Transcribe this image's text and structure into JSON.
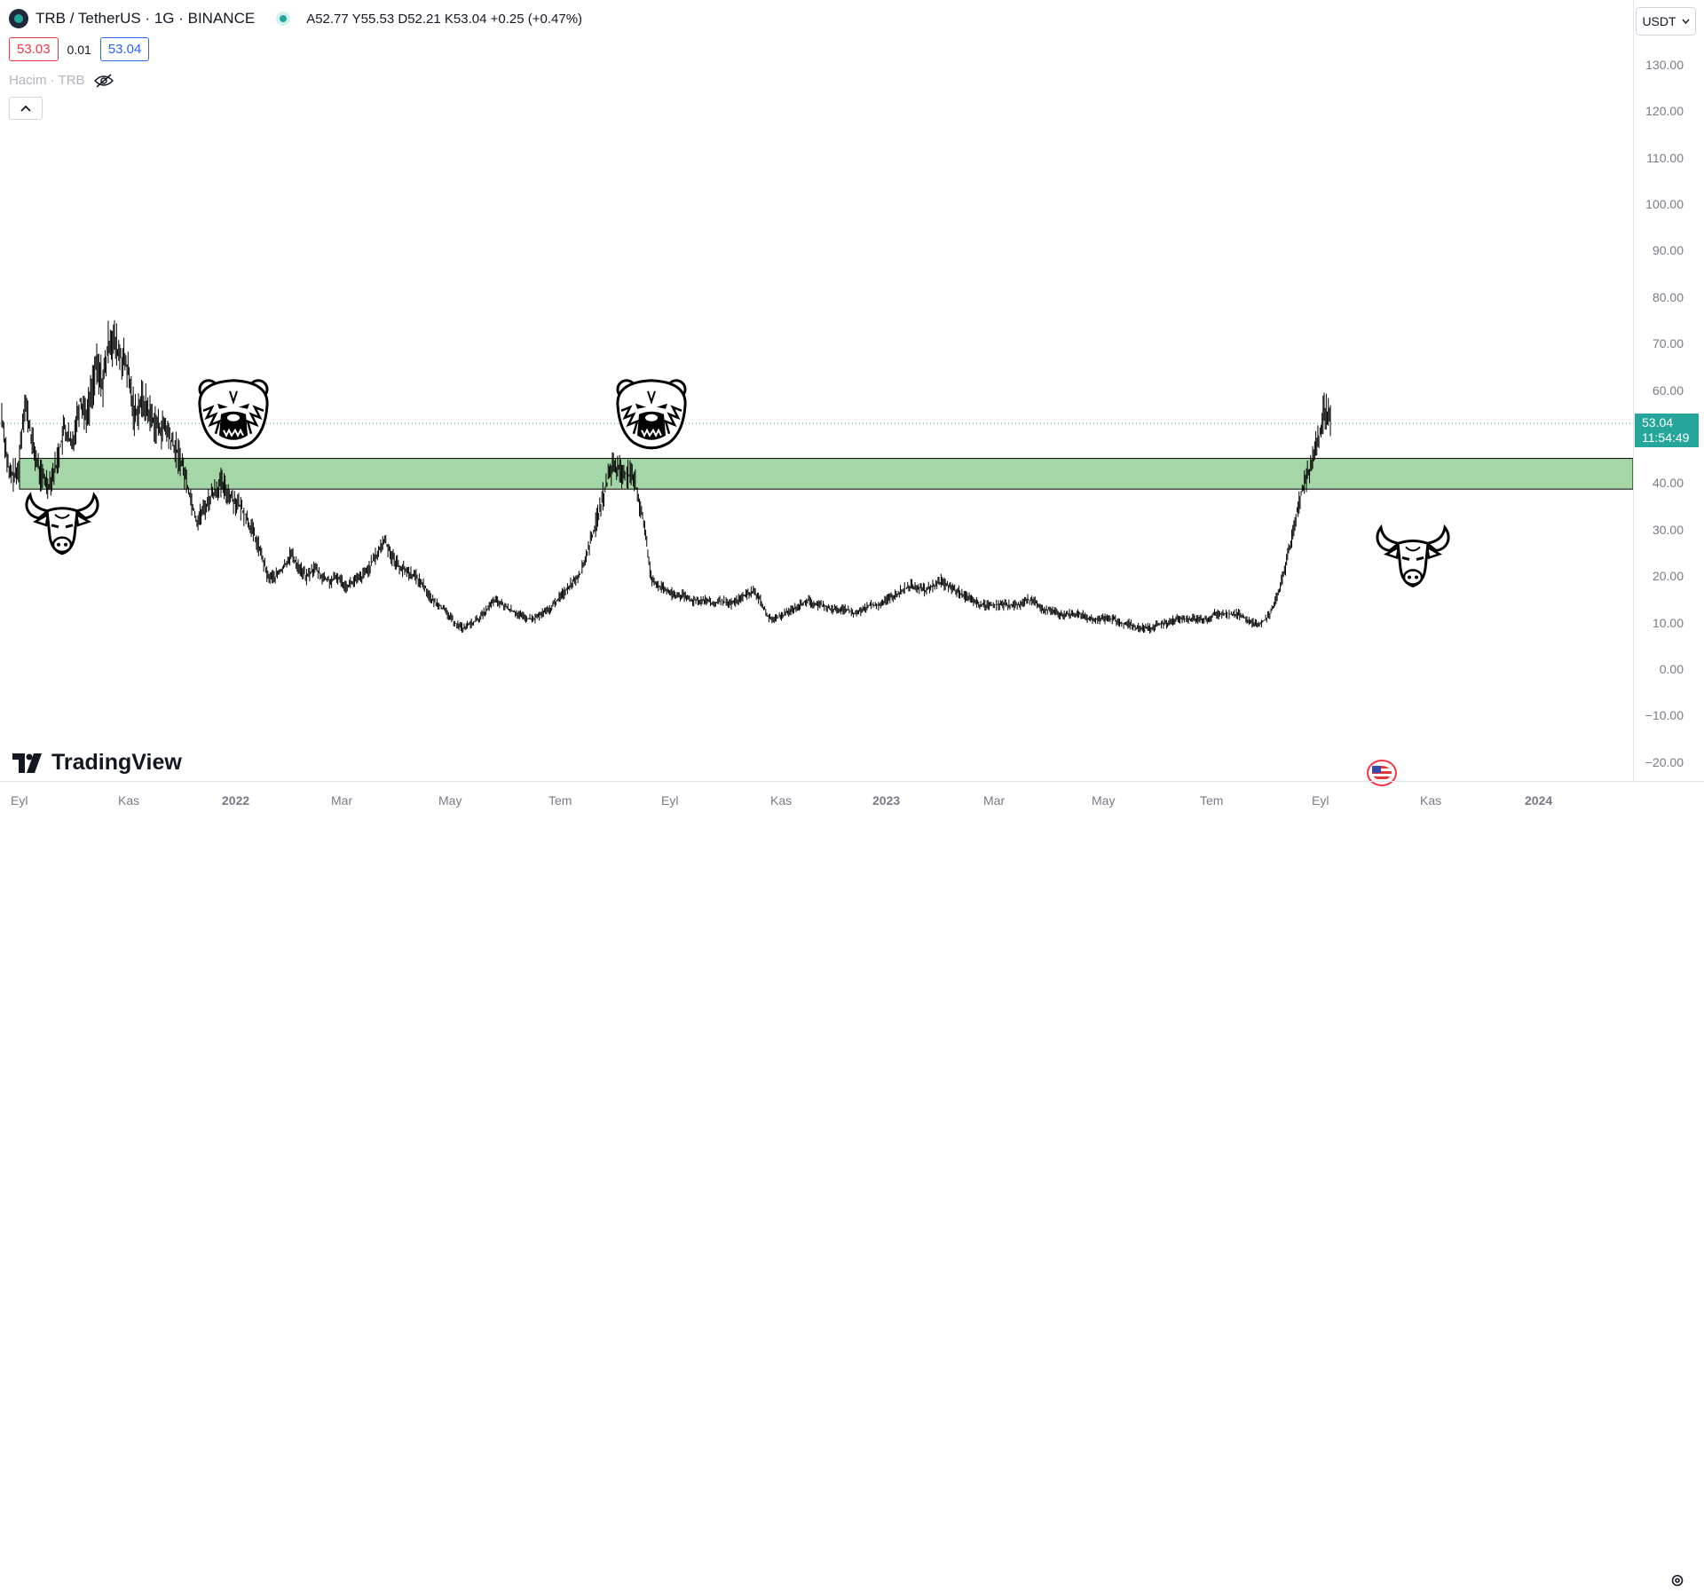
{
  "header": {
    "symbol_title": "TRB / TetherUS · 1G · BINANCE",
    "ohlc": {
      "open": "A52.77",
      "high": "Y55.53",
      "low": "D52.21",
      "close": "K53.04",
      "change": "+0.25 (+0.47%)"
    },
    "sell_price": "53.03",
    "spread": "0.01",
    "buy_price": "53.04",
    "volume_label": "Hacim · TRB",
    "currency": "USDT"
  },
  "price_axis": {
    "ticks": [
      "130.00",
      "120.00",
      "110.00",
      "100.00",
      "90.00",
      "80.00",
      "70.00",
      "60.00",
      "40.00",
      "30.00",
      "20.00",
      "10.00",
      "0.00",
      "−10.00",
      "−20.00"
    ],
    "last_price": "53.04",
    "countdown": "11:54:49"
  },
  "time_axis": {
    "labels": [
      "Eyl",
      "Kas",
      "2022",
      "Mar",
      "May",
      "Tem",
      "Eyl",
      "Kas",
      "2023",
      "Mar",
      "May",
      "Tem",
      "Eyl",
      "Kas",
      "2024"
    ]
  },
  "brand": {
    "name": "TradingView"
  },
  "colors": {
    "zone_fill": "#a5d6a7",
    "last_price": "#26a69a",
    "bars": "#000000"
  },
  "icons": {
    "bear": "bear-head-icon",
    "bull": "bull-head-icon",
    "settings": "gear-icon",
    "event": "us-flag-icon"
  },
  "chart_data": {
    "type": "ohlc",
    "series": [
      {
        "name": "TRB/USDT",
        "values": [
          [
            0,
            55
          ],
          [
            7,
            42
          ],
          [
            15,
            42
          ],
          [
            22,
            58
          ],
          [
            30,
            48
          ],
          [
            37,
            42
          ],
          [
            45,
            40
          ],
          [
            52,
            44
          ],
          [
            60,
            52
          ],
          [
            67,
            48
          ],
          [
            75,
            58
          ],
          [
            82,
            55
          ],
          [
            90,
            65
          ],
          [
            97,
            62
          ],
          [
            104,
            72
          ],
          [
            112,
            68
          ],
          [
            120,
            65
          ],
          [
            127,
            55
          ],
          [
            135,
            58
          ],
          [
            142,
            55
          ],
          [
            150,
            52
          ],
          [
            157,
            52
          ],
          [
            165,
            48
          ],
          [
            172,
            45
          ],
          [
            180,
            38
          ],
          [
            187,
            32
          ],
          [
            195,
            35
          ],
          [
            202,
            38
          ],
          [
            210,
            40
          ],
          [
            217,
            38
          ],
          [
            225,
            36
          ],
          [
            232,
            34
          ],
          [
            240,
            30
          ],
          [
            247,
            26
          ],
          [
            255,
            20
          ],
          [
            262,
            20
          ],
          [
            270,
            22
          ],
          [
            277,
            25
          ],
          [
            285,
            22
          ],
          [
            292,
            20
          ],
          [
            300,
            22
          ],
          [
            307,
            20
          ],
          [
            315,
            19
          ],
          [
            322,
            20
          ],
          [
            330,
            18
          ],
          [
            337,
            19
          ],
          [
            345,
            20
          ],
          [
            352,
            22
          ],
          [
            360,
            25
          ],
          [
            367,
            28
          ],
          [
            375,
            24
          ],
          [
            382,
            22
          ],
          [
            390,
            21
          ],
          [
            397,
            20
          ],
          [
            405,
            18
          ],
          [
            412,
            15
          ],
          [
            420,
            14
          ],
          [
            427,
            12
          ],
          [
            435,
            10
          ],
          [
            442,
            9
          ],
          [
            450,
            10
          ],
          [
            457,
            11
          ],
          [
            465,
            13
          ],
          [
            472,
            15
          ],
          [
            480,
            14
          ],
          [
            487,
            13
          ],
          [
            495,
            12
          ],
          [
            502,
            11
          ],
          [
            510,
            11
          ],
          [
            517,
            12
          ],
          [
            525,
            13
          ],
          [
            532,
            15
          ],
          [
            540,
            17
          ],
          [
            547,
            19
          ],
          [
            555,
            21
          ],
          [
            562,
            26
          ],
          [
            570,
            32
          ],
          [
            577,
            38
          ],
          [
            585,
            44
          ],
          [
            592,
            43
          ],
          [
            600,
            42
          ],
          [
            607,
            40
          ],
          [
            615,
            32
          ],
          [
            622,
            20
          ],
          [
            630,
            18
          ],
          [
            637,
            17
          ],
          [
            645,
            16
          ],
          [
            652,
            16
          ],
          [
            660,
            15
          ],
          [
            667,
            15
          ],
          [
            675,
            15
          ],
          [
            682,
            14
          ],
          [
            690,
            15
          ],
          [
            697,
            14
          ],
          [
            705,
            15
          ],
          [
            712,
            16
          ],
          [
            720,
            17
          ],
          [
            727,
            15
          ],
          [
            735,
            11
          ],
          [
            742,
            11
          ],
          [
            750,
            12
          ],
          [
            757,
            13
          ],
          [
            765,
            14
          ],
          [
            772,
            15
          ],
          [
            780,
            14
          ],
          [
            787,
            14
          ],
          [
            795,
            13
          ],
          [
            802,
            13
          ],
          [
            810,
            13
          ],
          [
            817,
            12
          ],
          [
            825,
            13
          ],
          [
            832,
            14
          ],
          [
            840,
            14
          ],
          [
            847,
            15
          ],
          [
            855,
            16
          ],
          [
            862,
            17
          ],
          [
            870,
            18
          ],
          [
            877,
            18
          ],
          [
            885,
            17
          ],
          [
            892,
            18
          ],
          [
            900,
            19
          ],
          [
            907,
            18
          ],
          [
            915,
            17
          ],
          [
            922,
            16
          ],
          [
            930,
            15
          ],
          [
            937,
            14
          ],
          [
            945,
            14
          ],
          [
            952,
            14
          ],
          [
            960,
            14
          ],
          [
            967,
            14
          ],
          [
            975,
            14
          ],
          [
            982,
            15
          ],
          [
            990,
            15
          ],
          [
            997,
            13
          ],
          [
            1005,
            13
          ],
          [
            1012,
            12
          ],
          [
            1020,
            12
          ],
          [
            1027,
            12
          ],
          [
            1035,
            12
          ],
          [
            1042,
            11
          ],
          [
            1050,
            11
          ],
          [
            1057,
            11
          ],
          [
            1065,
            11
          ],
          [
            1072,
            10
          ],
          [
            1080,
            10
          ],
          [
            1087,
            9
          ],
          [
            1095,
            9
          ],
          [
            1102,
            9
          ],
          [
            1110,
            10
          ],
          [
            1117,
            10
          ],
          [
            1125,
            11
          ],
          [
            1132,
            11
          ],
          [
            1140,
            11
          ],
          [
            1147,
            11
          ],
          [
            1155,
            11
          ],
          [
            1162,
            12
          ],
          [
            1170,
            12
          ],
          [
            1177,
            12
          ],
          [
            1185,
            12
          ],
          [
            1192,
            11
          ],
          [
            1200,
            10
          ],
          [
            1207,
            10
          ],
          [
            1215,
            12
          ],
          [
            1222,
            16
          ],
          [
            1230,
            22
          ],
          [
            1237,
            30
          ],
          [
            1245,
            38
          ],
          [
            1252,
            42
          ],
          [
            1260,
            48
          ],
          [
            1267,
            56
          ],
          [
            1274,
            53
          ]
        ]
      }
    ],
    "overlays": [
      {
        "type": "zone",
        "from": 38.9,
        "to": 45.5
      }
    ],
    "markers": [
      {
        "type": "bull",
        "x": 52,
        "y": 30
      },
      {
        "type": "bear",
        "x": 215,
        "y": 55
      },
      {
        "type": "bear",
        "x": 598,
        "y": 55
      },
      {
        "type": "bull",
        "x": 1300,
        "y": 23
      }
    ],
    "x_ticks": [
      "Eyl",
      "Kas",
      "2022",
      "Mar",
      "May",
      "Tem",
      "Eyl",
      "Kas",
      "2023",
      "Mar",
      "May",
      "Tem",
      "Eyl",
      "Kas",
      "2024"
    ],
    "ylim": [
      -20,
      130
    ],
    "last_price": 53.04,
    "grid": false,
    "legend": "none"
  }
}
